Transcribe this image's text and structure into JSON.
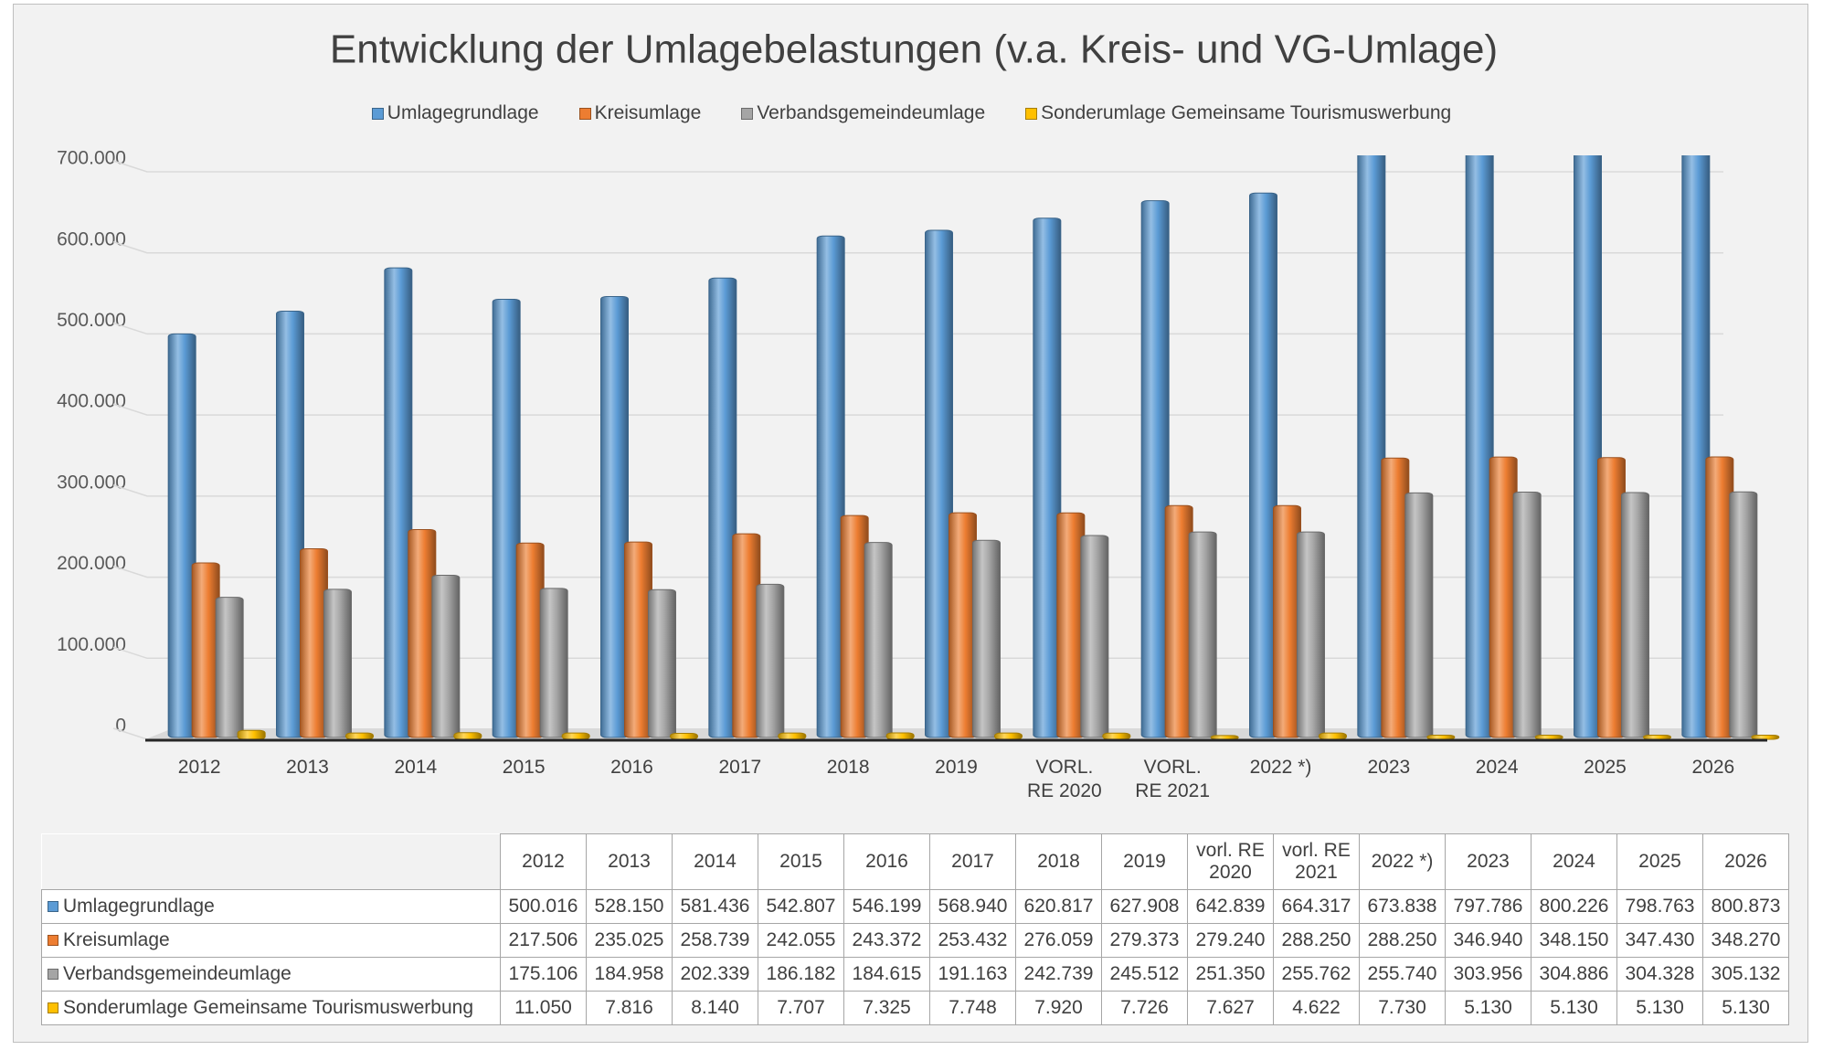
{
  "chart_data": {
    "type": "bar",
    "title": "Entwicklung der Umlagebelastungen (v.a. Kreis- und VG-Umlage)",
    "categories": [
      "2012",
      "2013",
      "2014",
      "2015",
      "2016",
      "2017",
      "2018",
      "2019",
      "VORL. RE 2020",
      "VORL. RE 2021",
      "2022 *)",
      "2023",
      "2024",
      "2025",
      "2026"
    ],
    "table_categories": [
      "2012",
      "2013",
      "2014",
      "2015",
      "2016",
      "2017",
      "2018",
      "2019",
      "vorl. RE 2020",
      "vorl. RE 2021",
      "2022 *)",
      "2023",
      "2024",
      "2025",
      "2026"
    ],
    "series": [
      {
        "name": "Umlagegrundlage",
        "color": "#5b9bd5",
        "values": [
          500016,
          528150,
          581436,
          542807,
          546199,
          568940,
          620817,
          627908,
          642839,
          664317,
          673838,
          797786,
          800226,
          798763,
          800873
        ],
        "value_labels": [
          "500.016",
          "528.150",
          "581.436",
          "542.807",
          "546.199",
          "568.940",
          "620.817",
          "627.908",
          "642.839",
          "664.317",
          "673.838",
          "797.786",
          "800.226",
          "798.763",
          "800.873"
        ]
      },
      {
        "name": "Kreisumlage",
        "color": "#ed7d31",
        "values": [
          217506,
          235025,
          258739,
          242055,
          243372,
          253432,
          276059,
          279373,
          279240,
          288250,
          288250,
          346940,
          348150,
          347430,
          348270
        ],
        "value_labels": [
          "217.506",
          "235.025",
          "258.739",
          "242.055",
          "243.372",
          "253.432",
          "276.059",
          "279.373",
          "279.240",
          "288.250",
          "288.250",
          "346.940",
          "348.150",
          "347.430",
          "348.270"
        ]
      },
      {
        "name": "Verbandsgemeindeumlage",
        "color": "#a5a5a5",
        "values": [
          175106,
          184958,
          202339,
          186182,
          184615,
          191163,
          242739,
          245512,
          251350,
          255762,
          255740,
          303956,
          304886,
          304328,
          305132
        ],
        "value_labels": [
          "175.106",
          "184.958",
          "202.339",
          "186.182",
          "184.615",
          "191.163",
          "242.739",
          "245.512",
          "251.350",
          "255.762",
          "255.740",
          "303.956",
          "304.886",
          "304.328",
          "305.132"
        ]
      },
      {
        "name": "Sonderumlage Gemeinsame Tourismuswerbung",
        "color": "#ffc000",
        "values": [
          11050,
          7816,
          8140,
          7707,
          7325,
          7748,
          7920,
          7726,
          7627,
          4622,
          7730,
          5130,
          5130,
          5130,
          5130
        ],
        "value_labels": [
          "11.050",
          "7.816",
          "8.140",
          "7.707",
          "7.325",
          "7.748",
          "7.920",
          "7.726",
          "7.627",
          "4.622",
          "7.730",
          "5.130",
          "5.130",
          "5.130",
          "5.130"
        ]
      }
    ],
    "ylim": [
      0,
      700000
    ],
    "yticks": [
      0,
      {
        "value": 100000,
        "label": "100.000"
      },
      {
        "value": 200000,
        "label": "200.000"
      },
      {
        "value": 300000,
        "label": "300.000"
      },
      {
        "value": 400000,
        "label": "400.000"
      },
      {
        "value": 500000,
        "label": "500.000"
      },
      {
        "value": 600000,
        "label": "600.000"
      },
      {
        "value": 700000,
        "label": "700.000"
      }
    ],
    "grid": true,
    "legend": "top"
  }
}
